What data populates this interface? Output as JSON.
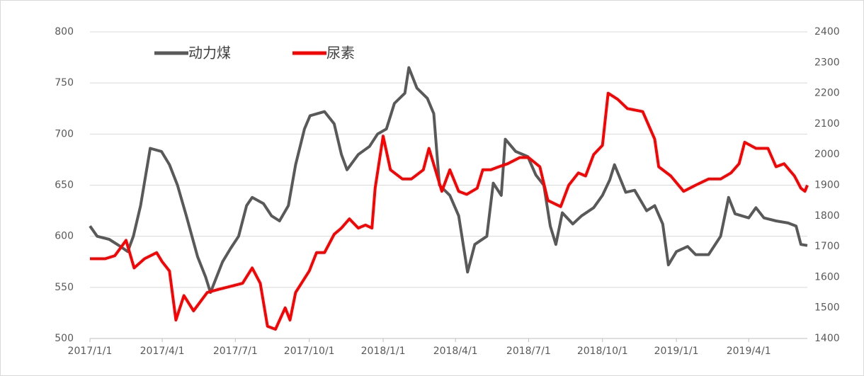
{
  "chart_data": {
    "type": "line",
    "xlim": [
      "2017/1/1",
      "2019/6/13"
    ],
    "xticks": [
      "2017/1/1",
      "2017/4/1",
      "2017/7/1",
      "2017/10/1",
      "2018/1/1",
      "2018/4/1",
      "2018/7/1",
      "2018/10/1",
      "2019/1/1",
      "2019/4/1"
    ],
    "ylim": [
      500,
      800
    ],
    "yticks": [
      500,
      550,
      600,
      650,
      700,
      750,
      800
    ],
    "y2lim": [
      1400,
      2400
    ],
    "y2ticks": [
      1400,
      1500,
      1600,
      1700,
      1800,
      1900,
      2000,
      2100,
      2200,
      2300,
      2400
    ],
    "grid": true,
    "legend": "top-left",
    "series": [
      {
        "name": "动力煤",
        "color": "#595959",
        "x": [
          "2017/1/1",
          "2017/1/10",
          "2017/1/25",
          "2017/2/8",
          "2017/2/17",
          "2017/2/24",
          "2017/3/5",
          "2017/3/17",
          "2017/3/31",
          "2017/4/10",
          "2017/4/20",
          "2017/5/1",
          "2017/5/15",
          "2017/5/25",
          "2017/5/31",
          "2017/6/15",
          "2017/6/25",
          "2017/7/5",
          "2017/7/15",
          "2017/7/22",
          "2017/8/5",
          "2017/8/15",
          "2017/8/25",
          "2017/9/5",
          "2017/9/14",
          "2017/9/25",
          "2017/10/2",
          "2017/10/20",
          "2017/11/1",
          "2017/11/10",
          "2017/11/17",
          "2017/12/1",
          "2017/12/15",
          "2017/12/25",
          "2018/1/5",
          "2018/1/15",
          "2018/1/28",
          "2018/2/2",
          "2018/2/12",
          "2018/2/25",
          "2018/3/5",
          "2018/3/12",
          "2018/3/25",
          "2018/4/5",
          "2018/4/16",
          "2018/4/25",
          "2018/5/10",
          "2018/5/18",
          "2018/5/28",
          "2018/6/2",
          "2018/6/15",
          "2018/6/30",
          "2018/7/10",
          "2018/7/20",
          "2018/7/28",
          "2018/8/4",
          "2018/8/12",
          "2018/8/25",
          "2018/9/5",
          "2018/9/20",
          "2018/10/1",
          "2018/10/10",
          "2018/10/16",
          "2018/10/30",
          "2018/11/10",
          "2018/11/25",
          "2018/12/5",
          "2018/12/15",
          "2018/12/22",
          "2019/1/1",
          "2019/1/15",
          "2019/1/25",
          "2019/2/10",
          "2019/2/25",
          "2019/3/7",
          "2019/3/15",
          "2019/4/1",
          "2019/4/10",
          "2019/4/20",
          "2019/5/5",
          "2019/5/20",
          "2019/5/30",
          "2019/6/5",
          "2019/6/13"
        ],
        "values": [
          610,
          600,
          597,
          590,
          585,
          600,
          630,
          686,
          683,
          670,
          650,
          620,
          580,
          560,
          545,
          575,
          588,
          600,
          630,
          638,
          632,
          620,
          615,
          630,
          670,
          705,
          718,
          722,
          710,
          680,
          665,
          680,
          688,
          700,
          705,
          730,
          740,
          765,
          745,
          735,
          720,
          650,
          640,
          620,
          565,
          592,
          600,
          652,
          640,
          695,
          683,
          678,
          660,
          650,
          610,
          592,
          623,
          612,
          620,
          628,
          640,
          655,
          670,
          643,
          645,
          625,
          630,
          612,
          572,
          585,
          590,
          582,
          582,
          600,
          638,
          622,
          618,
          628,
          618,
          615,
          613,
          610,
          592,
          591
        ]
      },
      {
        "name": "尿素",
        "color": "#ff0000",
        "axis": "y2",
        "x": [
          "2017/1/1",
          "2017/1/20",
          "2017/2/1",
          "2017/2/15",
          "2017/2/25",
          "2017/3/10",
          "2017/3/25",
          "2017/4/1",
          "2017/4/10",
          "2017/4/18",
          "2017/4/28",
          "2017/5/10",
          "2017/5/27",
          "2017/6/10",
          "2017/6/25",
          "2017/7/10",
          "2017/7/22",
          "2017/8/1",
          "2017/8/10",
          "2017/8/20",
          "2017/9/1",
          "2017/9/7",
          "2017/9/14",
          "2017/10/1",
          "2017/10/10",
          "2017/10/20",
          "2017/11/1",
          "2017/11/10",
          "2017/11/20",
          "2017/12/1",
          "2017/12/10",
          "2017/12/18",
          "2017/12/22",
          "2018/1/1",
          "2018/1/10",
          "2018/1/25",
          "2018/2/5",
          "2018/2/20",
          "2018/2/27",
          "2018/3/15",
          "2018/3/25",
          "2018/4/5",
          "2018/4/15",
          "2018/4/28",
          "2018/5/5",
          "2018/5/15",
          "2018/5/25",
          "2018/6/5",
          "2018/6/20",
          "2018/7/1",
          "2018/7/15",
          "2018/7/25",
          "2018/8/10",
          "2018/8/20",
          "2018/9/1",
          "2018/9/10",
          "2018/9/20",
          "2018/10/1",
          "2018/10/8",
          "2018/10/20",
          "2018/11/1",
          "2018/11/20",
          "2018/12/5",
          "2018/12/10",
          "2018/12/25",
          "2019/1/10",
          "2019/1/25",
          "2019/2/10",
          "2019/2/25",
          "2019/3/10",
          "2019/3/20",
          "2019/3/27",
          "2019/4/10",
          "2019/4/25",
          "2019/5/5",
          "2019/5/15",
          "2019/5/28",
          "2019/6/5",
          "2019/6/10",
          "2019/6/13"
        ],
        "values": [
          1660,
          1660,
          1670,
          1720,
          1630,
          1660,
          1680,
          1650,
          1620,
          1460,
          1540,
          1490,
          1550,
          1560,
          1570,
          1580,
          1630,
          1580,
          1440,
          1430,
          1500,
          1460,
          1550,
          1620,
          1680,
          1680,
          1740,
          1760,
          1790,
          1760,
          1770,
          1760,
          1890,
          2060,
          1950,
          1920,
          1920,
          1950,
          2020,
          1880,
          1950,
          1880,
          1870,
          1890,
          1950,
          1950,
          1960,
          1970,
          1990,
          1990,
          1960,
          1850,
          1830,
          1900,
          1940,
          1930,
          2000,
          2030,
          2200,
          2180,
          2150,
          2140,
          2050,
          1960,
          1930,
          1880,
          1900,
          1920,
          1920,
          1940,
          1970,
          2040,
          2020,
          2020,
          1960,
          1970,
          1930,
          1890,
          1880,
          1900
        ]
      }
    ]
  }
}
